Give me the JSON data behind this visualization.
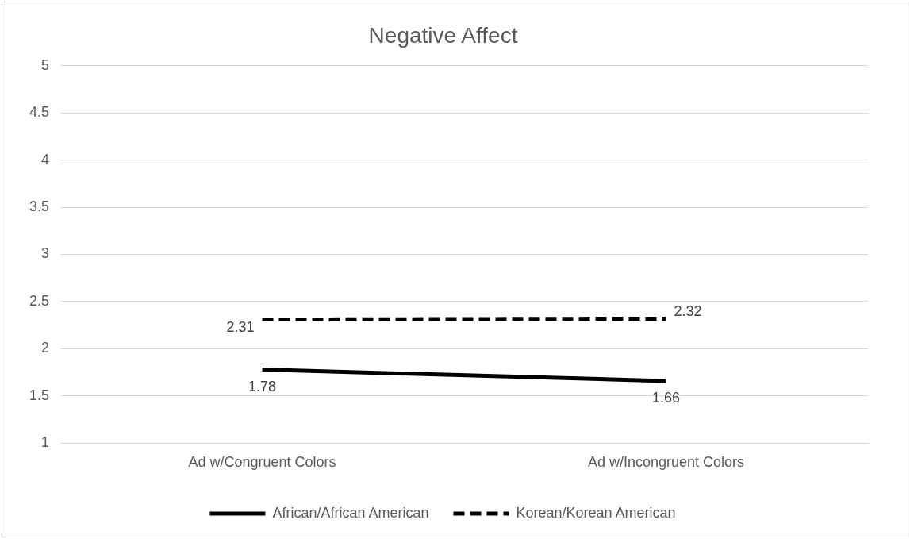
{
  "chart_data": {
    "type": "line",
    "title": "Negative Affect",
    "categories": [
      "Ad w/Congruent Colors",
      "Ad w/Incongruent Colors"
    ],
    "series": [
      {
        "name": "African/African American",
        "color": "#000000",
        "line_style": "solid",
        "values": [
          1.78,
          1.66
        ]
      },
      {
        "name": "Korean/Korean American",
        "color": "#000000",
        "line_style": "dashed",
        "values": [
          2.31,
          2.32
        ]
      }
    ],
    "ylim": [
      1,
      5
    ],
    "yticks": [
      1,
      1.5,
      2,
      2.5,
      3,
      3.5,
      4,
      4.5,
      5
    ],
    "grid": "y",
    "legend": "bottom",
    "marker": "none",
    "data_labels": true
  }
}
